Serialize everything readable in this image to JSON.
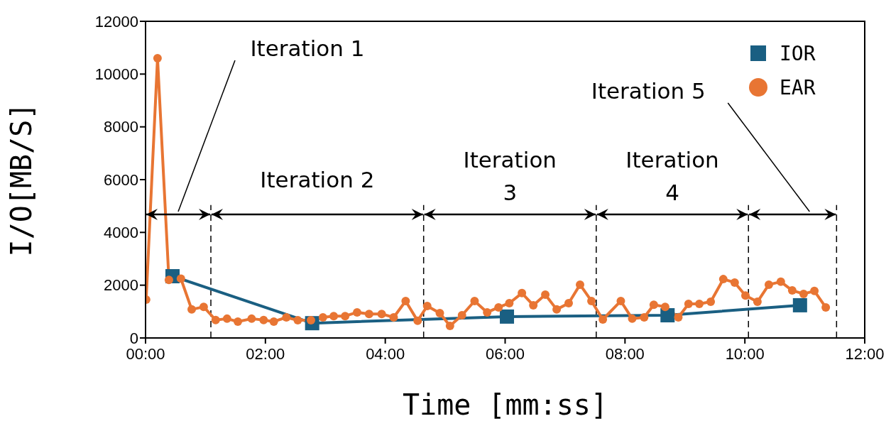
{
  "chart_data": {
    "type": "line",
    "xlabel": "Time [mm:ss]",
    "ylabel": "I/O[MB/S]",
    "xlim": [
      0,
      12
    ],
    "xticks": [
      {
        "value": 0,
        "label": "00:00"
      },
      {
        "value": 2,
        "label": "02:00"
      },
      {
        "value": 4,
        "label": "04:00"
      },
      {
        "value": 6,
        "label": "06:00"
      },
      {
        "value": 8,
        "label": "08:00"
      },
      {
        "value": 10,
        "label": "10:00"
      },
      {
        "value": 12,
        "label": "12:00"
      }
    ],
    "ylim": [
      0,
      12000
    ],
    "yticks": [
      0,
      2000,
      4000,
      6000,
      8000,
      10000,
      12000
    ],
    "grid": false,
    "legend": "top right",
    "line_style": "solid",
    "series": [
      {
        "name": "IOR",
        "color": "#1a5f82",
        "marker": "square",
        "x": [
          0.45,
          2.78,
          6.03,
          8.71,
          10.92
        ],
        "values": [
          2340,
          560,
          810,
          860,
          1240
        ]
      },
      {
        "name": "EAR",
        "color": "#e87533",
        "marker": "circle",
        "x": [
          0.01,
          0.2,
          0.39,
          0.59,
          0.77,
          0.97,
          1.17,
          1.36,
          1.54,
          1.77,
          1.97,
          2.14,
          2.35,
          2.54,
          2.76,
          2.96,
          3.14,
          3.33,
          3.53,
          3.73,
          3.94,
          4.14,
          4.34,
          4.54,
          4.7,
          4.91,
          5.08,
          5.28,
          5.49,
          5.7,
          5.89,
          6.07,
          6.28,
          6.47,
          6.67,
          6.86,
          7.06,
          7.25,
          7.44,
          7.63,
          7.93,
          8.12,
          8.32,
          8.48,
          8.67,
          8.89,
          9.06,
          9.24,
          9.43,
          9.64,
          9.83,
          10.01,
          10.21,
          10.4,
          10.6,
          10.79,
          10.98,
          11.16,
          11.35
        ],
        "values": [
          1450,
          10600,
          2200,
          2250,
          1080,
          1180,
          680,
          730,
          620,
          730,
          680,
          620,
          780,
          670,
          670,
          780,
          830,
          830,
          970,
          910,
          910,
          780,
          1400,
          650,
          1210,
          940,
          460,
          860,
          1400,
          970,
          1160,
          1320,
          1700,
          1240,
          1640,
          1080,
          1320,
          2020,
          1400,
          700,
          1400,
          730,
          780,
          1260,
          1180,
          780,
          1290,
          1290,
          1370,
          2230,
          2100,
          1610,
          1370,
          2020,
          2130,
          1800,
          1670,
          1780,
          1160
        ]
      }
    ],
    "ref_lines": [
      {
        "axis": "x",
        "value": 1.09,
        "line_style": "dashed",
        "color": "#000000"
      },
      {
        "axis": "x",
        "value": 4.64,
        "line_style": "dashed",
        "color": "#000000"
      },
      {
        "axis": "x",
        "value": 7.52,
        "line_style": "dashed",
        "color": "#000000"
      },
      {
        "axis": "x",
        "value": 10.06,
        "line_style": "dashed",
        "color": "#000000"
      },
      {
        "axis": "x",
        "value": 11.53,
        "line_style": "dashed",
        "color": "#000000"
      }
    ],
    "annotations": [
      "Iteration 1",
      "Iteration 2",
      "Iteration 3",
      "Iteration 4",
      "Iteration 5"
    ]
  }
}
